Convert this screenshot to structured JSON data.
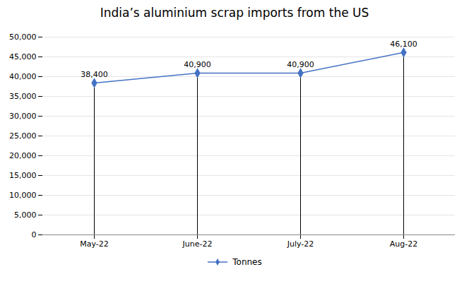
{
  "chart_data": {
    "type": "line",
    "title": "India’s aluminium scrap imports from the US",
    "categories": [
      "May-22",
      "June-22",
      "July-22",
      "Aug-22"
    ],
    "series": [
      {
        "name": "Tonnes",
        "color": "#4472C4",
        "marker": "diamond",
        "values": [
          38400,
          40900,
          40900,
          46100
        ],
        "value_labels": [
          "38,400",
          "40,900",
          "40,900",
          "46,100"
        ]
      }
    ],
    "ylim": [
      0,
      50000
    ],
    "yticks": [
      0,
      {
        "value": 5000,
        "label": "5,000"
      },
      {
        "value": 10000,
        "label": "10,000"
      },
      {
        "value": 15000,
        "label": "15,000"
      },
      {
        "value": 20000,
        "label": "20,000"
      },
      {
        "value": 25000,
        "label": "25,000"
      },
      {
        "value": 30000,
        "label": "30,000"
      },
      {
        "value": 35000,
        "label": "35,000"
      },
      {
        "value": 40000,
        "label": "40,000"
      },
      {
        "value": 45000,
        "label": "45,000"
      },
      {
        "value": 50000,
        "label": "50,000"
      }
    ],
    "grid": true,
    "data_labels": true,
    "legend": "bottom"
  }
}
